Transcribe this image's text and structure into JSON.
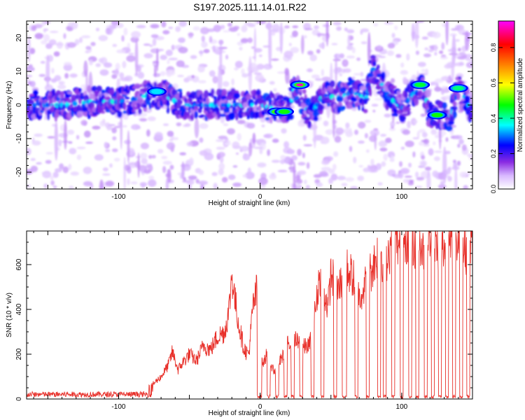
{
  "title": "S197.2025.111.14.01.R22",
  "chart_data": [
    {
      "type": "heatmap",
      "xlabel": "Height of straight line (km)",
      "ylabel": "Frequency (Hz)",
      "xlim": [
        -165,
        150
      ],
      "ylim": [
        -25,
        25
      ],
      "x_ticks": [
        -100,
        0,
        100
      ],
      "y_ticks": [
        -20,
        -10,
        0,
        10,
        20
      ],
      "colorbar": {
        "label": "Normalized spectral amplitude",
        "range": [
          0.0,
          0.95
        ],
        "ticks": [
          "0.0",
          "0.2",
          "0.4",
          "0.6",
          "0.8"
        ],
        "colormap": [
          "#ffffff",
          "#d8b8ff",
          "#8a2be2",
          "#0000ff",
          "#00ffff",
          "#00ff00",
          "#ffff00",
          "#ff8000",
          "#ff0000",
          "#ff00ff"
        ]
      },
      "ridge": {
        "x": [
          -165,
          -140,
          -120,
          -100,
          -85,
          -75,
          -68,
          -55,
          -40,
          -20,
          0,
          10,
          20,
          25,
          35,
          45,
          55,
          65,
          75,
          80,
          90,
          100,
          110,
          115,
          120,
          130,
          135,
          140,
          150
        ],
        "y": [
          0,
          0,
          1,
          1,
          2,
          4,
          3,
          0,
          0,
          0,
          0,
          -1,
          -2,
          6,
          -3,
          3,
          2,
          4,
          2,
          11,
          3,
          -1,
          4,
          6,
          -3,
          -3,
          -3,
          5,
          -2
        ]
      },
      "hot_spots": [
        {
          "x": 28,
          "y": 6,
          "amp": 0.92
        },
        {
          "x": 12,
          "y": -2,
          "amp": 0.5
        },
        {
          "x": 17,
          "y": -2,
          "amp": 0.48
        },
        {
          "x": 113,
          "y": 6,
          "amp": 0.45
        },
        {
          "x": 125,
          "y": -3,
          "amp": 0.48
        },
        {
          "x": 140,
          "y": 5,
          "amp": 0.42
        },
        {
          "x": -73,
          "y": 4,
          "amp": 0.35
        }
      ]
    },
    {
      "type": "line",
      "xlabel": "Height of straight line (km)",
      "ylabel": "SNR (10 * v/v)",
      "xlim": [
        -165,
        150
      ],
      "ylim": [
        0,
        750
      ],
      "x_ticks": [
        -100,
        0,
        100
      ],
      "y_ticks": [
        0,
        200,
        400,
        600
      ],
      "color": "#e8302a",
      "series": [
        {
          "x": [
            -165,
            -150,
            -135,
            -120,
            -105,
            -90,
            -80,
            -75,
            -70,
            -65,
            -62,
            -58,
            -55,
            -50,
            -45,
            -40,
            -35,
            -30,
            -25,
            -22,
            -20,
            -18,
            -15,
            -12,
            -10,
            -8,
            -5,
            -3,
            -2,
            0,
            5,
            10,
            15,
            20,
            25,
            30,
            35,
            40,
            42,
            45,
            48,
            50,
            55,
            60,
            65,
            70,
            75,
            80,
            85,
            88,
            90,
            95,
            100,
            105,
            110,
            112,
            115,
            120,
            125,
            130,
            135,
            140,
            145,
            150
          ],
          "y": [
            18,
            22,
            20,
            22,
            25,
            30,
            45,
            70,
            100,
            150,
            210,
            130,
            160,
            200,
            170,
            240,
            220,
            280,
            300,
            400,
            560,
            450,
            330,
            240,
            210,
            200,
            420,
            460,
            540,
            150,
            200,
            120,
            180,
            250,
            260,
            230,
            240,
            440,
            560,
            480,
            410,
            560,
            480,
            590,
            550,
            460,
            520,
            600,
            680,
            560,
            650,
            720,
            660,
            690,
            700,
            750,
            660,
            700,
            690,
            680,
            690,
            700,
            670,
            690
          ]
        }
      ],
      "dropouts": [
        [
          -2,
          1
        ],
        [
          5,
          7
        ],
        [
          11,
          13
        ],
        [
          17,
          19
        ],
        [
          22,
          24
        ],
        [
          28,
          30
        ],
        [
          36,
          38
        ],
        [
          43,
          45
        ],
        [
          52,
          54
        ],
        [
          58,
          61
        ],
        [
          67,
          69
        ],
        [
          75,
          77
        ],
        [
          83,
          85
        ],
        [
          87,
          89
        ],
        [
          93,
          95
        ],
        [
          99,
          101
        ],
        [
          105,
          107
        ],
        [
          110,
          112
        ],
        [
          116,
          118
        ],
        [
          121,
          123
        ],
        [
          126,
          128
        ],
        [
          131,
          133
        ],
        [
          136,
          138
        ],
        [
          141,
          143
        ],
        [
          146,
          148
        ]
      ]
    }
  ]
}
